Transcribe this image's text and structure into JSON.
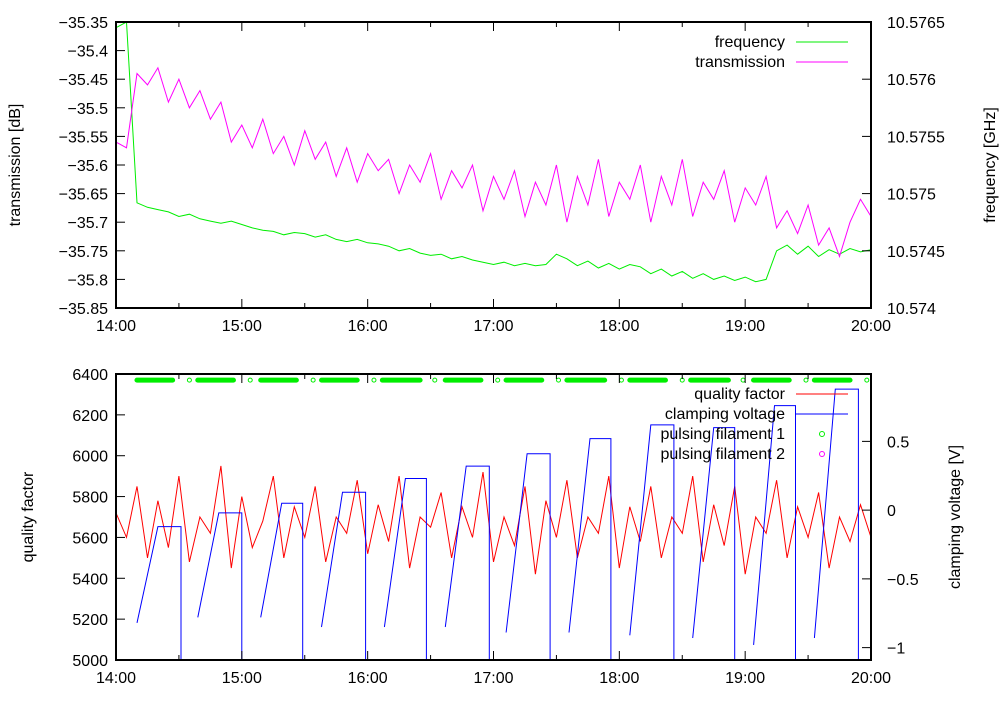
{
  "chart_data": [
    {
      "type": "line",
      "panel": "top",
      "xlabel": "",
      "ylabel": "transmission [dB]",
      "y2label": "frequency [GHz]",
      "xlim": [
        "14:00",
        "20:00"
      ],
      "ylim": [
        -35.85,
        -35.35
      ],
      "y2lim": [
        10.574,
        10.5765
      ],
      "x_ticks": [
        "14:00",
        "15:00",
        "16:00",
        "17:00",
        "18:00",
        "19:00",
        "20:00"
      ],
      "y_ticks": [
        "-35.35",
        "-35.4",
        "-35.45",
        "-35.5",
        "-35.55",
        "-35.6",
        "-35.65",
        "-35.7",
        "-35.75",
        "-35.8",
        "-35.85"
      ],
      "y2_ticks": [
        "10.5765",
        "10.576",
        "10.5755",
        "10.575",
        "10.5745",
        "10.574"
      ],
      "grid": false,
      "legend_placement": "top-right",
      "sample_interval_minutes": 5,
      "series": [
        {
          "name": "frequency",
          "axis": "right",
          "color": "#00ee00",
          "values": [
            10.57645,
            10.5765,
            10.57492,
            10.57488,
            10.57486,
            10.57484,
            10.5748,
            10.57482,
            10.57478,
            10.57476,
            10.57474,
            10.57476,
            10.57473,
            10.5747,
            10.57468,
            10.57467,
            10.57464,
            10.57466,
            10.57465,
            10.57462,
            10.57464,
            10.5746,
            10.57458,
            10.5746,
            10.57457,
            10.57456,
            10.57454,
            10.5745,
            10.57452,
            10.57448,
            10.57446,
            10.57447,
            10.57443,
            10.57445,
            10.57442,
            10.5744,
            10.57438,
            10.5744,
            10.57437,
            10.57439,
            10.57437,
            10.57438,
            10.57447,
            10.57443,
            10.57437,
            10.57441,
            10.57435,
            10.57439,
            10.57434,
            10.57438,
            10.57436,
            10.5743,
            10.57434,
            10.57428,
            10.57432,
            10.57426,
            10.5743,
            10.57425,
            10.57428,
            10.57424,
            10.57427,
            10.57423,
            10.57425,
            10.5745,
            10.57455,
            10.57447,
            10.57454,
            10.57445,
            10.57451,
            10.57447,
            10.57452,
            10.57449,
            10.57451
          ]
        },
        {
          "name": "transmission",
          "axis": "left",
          "color": "#ff00ff",
          "values": [
            -35.56,
            -35.57,
            -35.44,
            -35.46,
            -35.43,
            -35.49,
            -35.45,
            -35.5,
            -35.47,
            -35.52,
            -35.49,
            -35.56,
            -35.53,
            -35.57,
            -35.52,
            -35.58,
            -35.55,
            -35.6,
            -35.54,
            -35.59,
            -35.56,
            -35.62,
            -35.57,
            -35.63,
            -35.58,
            -35.61,
            -35.59,
            -35.65,
            -35.6,
            -35.63,
            -35.58,
            -35.66,
            -35.61,
            -35.64,
            -35.6,
            -35.68,
            -35.62,
            -35.66,
            -35.61,
            -35.69,
            -35.63,
            -35.67,
            -35.6,
            -35.7,
            -35.62,
            -35.67,
            -35.59,
            -35.69,
            -35.63,
            -35.66,
            -35.6,
            -35.7,
            -35.62,
            -35.67,
            -35.59,
            -35.69,
            -35.63,
            -35.66,
            -35.61,
            -35.7,
            -35.64,
            -35.67,
            -35.62,
            -35.71,
            -35.68,
            -35.72,
            -35.67,
            -35.74,
            -35.71,
            -35.76,
            -35.7,
            -35.66,
            -35.69
          ]
        }
      ]
    },
    {
      "type": "line",
      "panel": "bottom",
      "xlabel": "",
      "ylabel": "quality factor",
      "y2label": "clamping voltage [V]",
      "xlim": [
        "14:00",
        "20:00"
      ],
      "ylim": [
        5000,
        6400
      ],
      "y2lim": [
        -1.09,
        0.99
      ],
      "x_ticks": [
        "14:00",
        "15:00",
        "16:00",
        "17:00",
        "18:00",
        "19:00",
        "20:00"
      ],
      "y_ticks": [
        "6400",
        "6200",
        "6000",
        "5800",
        "5600",
        "5400",
        "5200",
        "5000"
      ],
      "y2_ticks": [
        "0.5",
        "0",
        "-0.5",
        "-1"
      ],
      "grid": false,
      "legend_placement": "top-right",
      "sample_interval_minutes": 5,
      "series": [
        {
          "name": "quality factor",
          "axis": "left",
          "color": "#ff0000",
          "values": [
            5720,
            5600,
            5850,
            5500,
            5780,
            5550,
            5900,
            5480,
            5700,
            5620,
            5950,
            5450,
            5800,
            5550,
            5680,
            5900,
            5500,
            5750,
            5600,
            5850,
            5480,
            5700,
            5620,
            5880,
            5520,
            5760,
            5580,
            5900,
            5450,
            5700,
            5650,
            5820,
            5500,
            5750,
            5600,
            5920,
            5480,
            5700,
            5560,
            5850,
            5420,
            5780,
            5600,
            5880,
            5500,
            5700,
            5620,
            5900,
            5450,
            5750,
            5580,
            5850,
            5500,
            5700,
            5620,
            5900,
            5480,
            5760,
            5560,
            5850,
            5420,
            5700,
            5620,
            5880,
            5500,
            5750,
            5600,
            5820,
            5450,
            5700,
            5580,
            5760,
            5600
          ]
        },
        {
          "name": "clamping voltage",
          "axis": "right",
          "color": "#0000ff",
          "cycles": [
            {
              "ramp_start": [
                "14:10",
                -0.82
              ],
              "plateau_start": [
                "14:20",
                -0.12
              ],
              "end": [
                "14:31",
                -0.12
              ]
            },
            {
              "ramp_start": [
                "14:39",
                -0.78
              ],
              "plateau_start": [
                "14:49",
                -0.02
              ],
              "end": [
                "15:00",
                -0.02
              ]
            },
            {
              "ramp_start": [
                "15:09",
                -0.78
              ],
              "plateau_start": [
                "15:19",
                0.05
              ],
              "end": [
                "15:29",
                0.05
              ]
            },
            {
              "ramp_start": [
                "15:38",
                -0.85
              ],
              "plateau_start": [
                "15:48",
                0.13
              ],
              "end": [
                "15:59",
                0.13
              ]
            },
            {
              "ramp_start": [
                "16:08",
                -0.85
              ],
              "plateau_start": [
                "16:18",
                0.23
              ],
              "end": [
                "16:28",
                0.23
              ]
            },
            {
              "ramp_start": [
                "16:37",
                -0.85
              ],
              "plateau_start": [
                "16:47",
                0.32
              ],
              "end": [
                "16:58",
                0.32
              ]
            },
            {
              "ramp_start": [
                "17:06",
                -0.89
              ],
              "plateau_start": [
                "17:16",
                0.41
              ],
              "end": [
                "17:27",
                0.41
              ]
            },
            {
              "ramp_start": [
                "17:36",
                -0.89
              ],
              "plateau_start": [
                "17:46",
                0.52
              ],
              "end": [
                "17:56",
                0.52
              ]
            },
            {
              "ramp_start": [
                "18:05",
                -0.91
              ],
              "plateau_start": [
                "18:15",
                0.62
              ],
              "end": [
                "18:26",
                0.62
              ]
            },
            {
              "ramp_start": [
                "18:35",
                -0.93
              ],
              "plateau_start": [
                "18:45",
                0.6
              ],
              "end": [
                "18:55",
                0.6
              ]
            },
            {
              "ramp_start": [
                "19:04",
                -0.98
              ],
              "plateau_start": [
                "19:14",
                0.76
              ],
              "end": [
                "19:24",
                0.76
              ]
            },
            {
              "ramp_start": [
                "19:33",
                -0.93
              ],
              "plateau_start": [
                "19:43",
                0.88
              ],
              "end": [
                "19:54",
                0.88
              ]
            }
          ]
        },
        {
          "name": "pulsing filament 1",
          "axis": "left",
          "color": "#00ee00",
          "marker": "circle",
          "y": 6370,
          "bursts": [
            [
              "14:10",
              "14:27"
            ],
            [
              "14:39",
              "14:56"
            ],
            [
              "15:09",
              "15:26"
            ],
            [
              "15:38",
              "15:55"
            ],
            [
              "16:07",
              "16:25"
            ],
            [
              "16:37",
              "16:54"
            ],
            [
              "17:06",
              "17:23"
            ],
            [
              "17:35",
              "17:53"
            ],
            [
              "18:05",
              "18:22"
            ],
            [
              "18:34",
              "18:52"
            ],
            [
              "19:04",
              "19:21"
            ],
            [
              "19:33",
              "19:50"
            ]
          ],
          "singles": [
            "14:35",
            "15:04",
            "15:34",
            "16:03",
            "16:32",
            "17:02",
            "17:31",
            "18:01",
            "18:30",
            "18:59",
            "19:29",
            "19:58"
          ]
        },
        {
          "name": "pulsing filament 2",
          "axis": "left",
          "color": "#ff00ff",
          "marker": "circle"
        }
      ]
    }
  ]
}
